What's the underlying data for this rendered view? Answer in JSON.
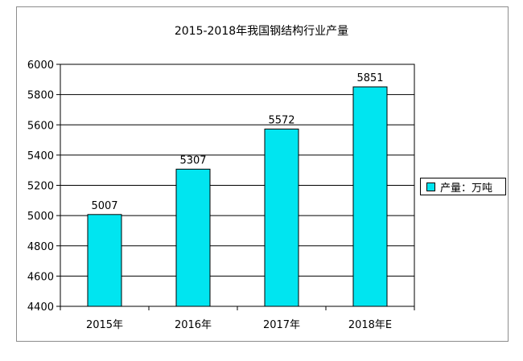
{
  "chart_data": {
    "type": "bar",
    "title": "2015-2018年我国钢结构行业产量",
    "categories": [
      "2015年",
      "2016年",
      "2017年",
      "2018年E"
    ],
    "series": [
      {
        "name": "产量：万吨",
        "values": [
          5007,
          5307,
          5572,
          5851
        ]
      }
    ],
    "data_labels": [
      "5007",
      "5307",
      "5572",
      "5851"
    ],
    "y_ticks": [
      "4400",
      "4600",
      "4800",
      "5000",
      "5200",
      "5400",
      "5600",
      "5800",
      "6000"
    ],
    "ylim": [
      4400,
      6000
    ],
    "grid": true,
    "legend_position": "right",
    "colors": {
      "bar": "#00e5f0",
      "plot_background": "#ffffff",
      "border": "#000000"
    }
  }
}
